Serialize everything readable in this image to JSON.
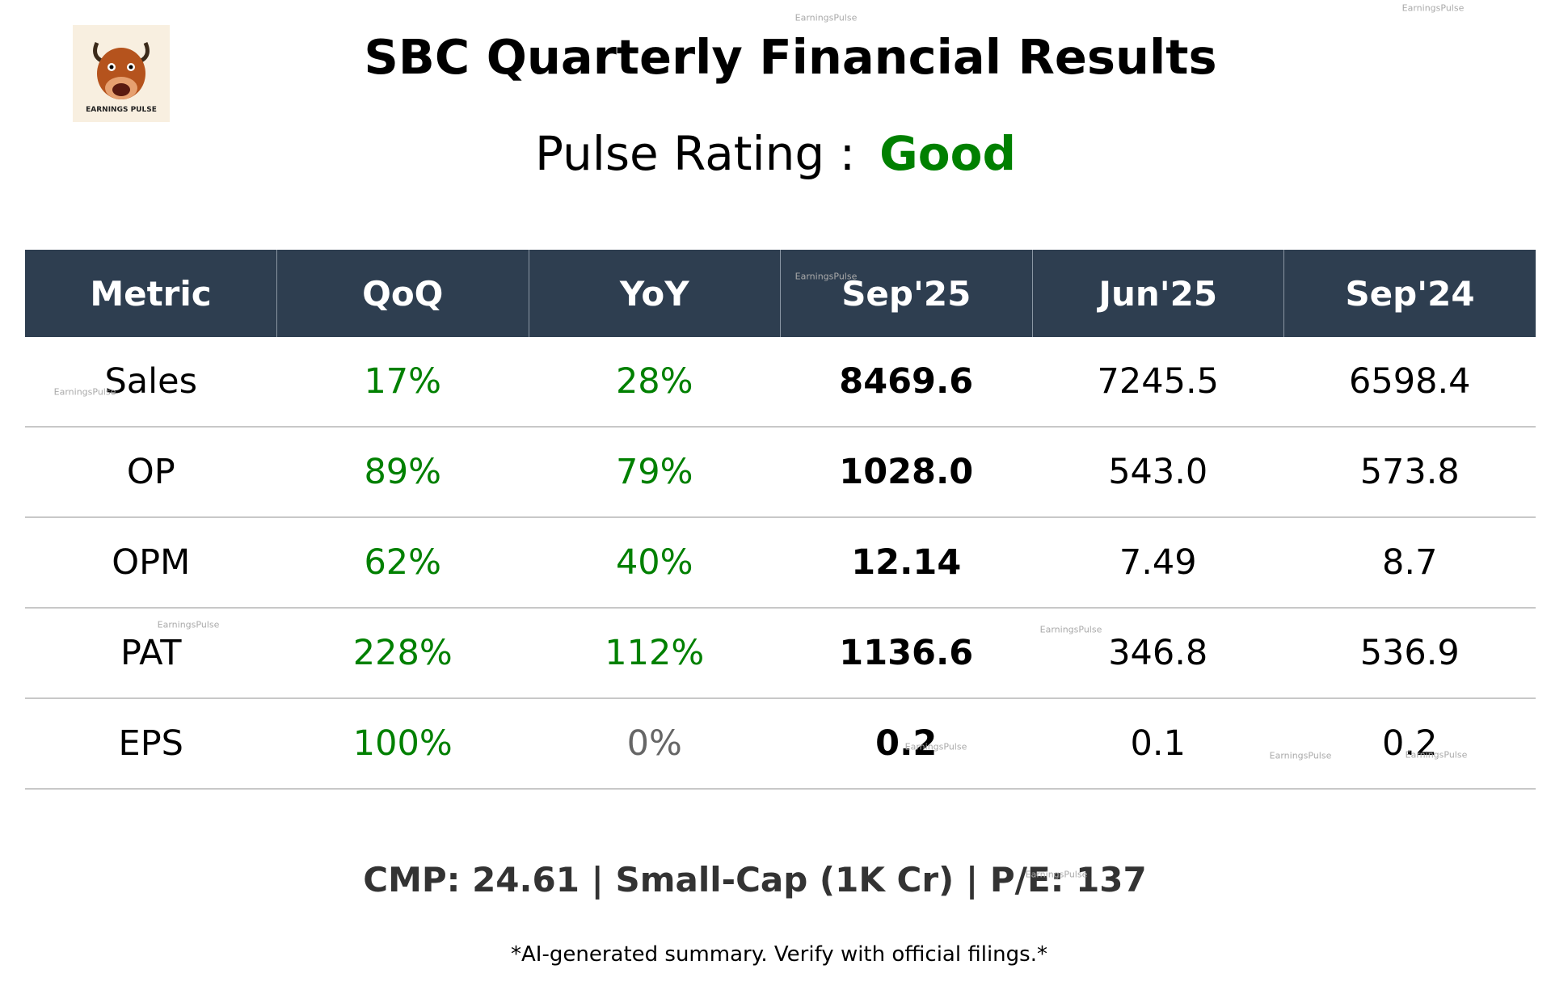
{
  "header": {
    "title": "SBC Quarterly Financial Results",
    "logo_text": "EARNINGS PULSE",
    "rating_label": "Pulse Rating :",
    "rating_value": "Good"
  },
  "table": {
    "columns": [
      "Metric",
      "QoQ",
      "YoY",
      "Sep'25",
      "Jun'25",
      "Sep'24"
    ],
    "rows": [
      [
        "Sales",
        "17%",
        "28%",
        "8469.6",
        "7245.5",
        "6598.4"
      ],
      [
        "OP",
        "89%",
        "79%",
        "1028.0",
        "543.0",
        "573.8"
      ],
      [
        "OPM",
        "62%",
        "40%",
        "12.14",
        "7.49",
        "8.7"
      ],
      [
        "PAT",
        "228%",
        "112%",
        "1136.6",
        "346.8",
        "536.9"
      ],
      [
        "EPS",
        "100%",
        "0%",
        "0.2",
        "0.1",
        "0.2"
      ]
    ]
  },
  "footer": {
    "summary": "CMP: 24.61 | Small-Cap (1K Cr) | P/E: 137",
    "disclaimer": "*AI-generated summary. Verify with official filings.*"
  },
  "watermarks": [
    "EarningsPulse",
    "EarningsPulse",
    "EarningsPulse",
    "EarningsPulse",
    "EarningsPulse",
    "EarningsPulse",
    "EarningsPulse",
    "EarningsPulse",
    "EarningsPulse",
    "EarningsPulse"
  ]
}
